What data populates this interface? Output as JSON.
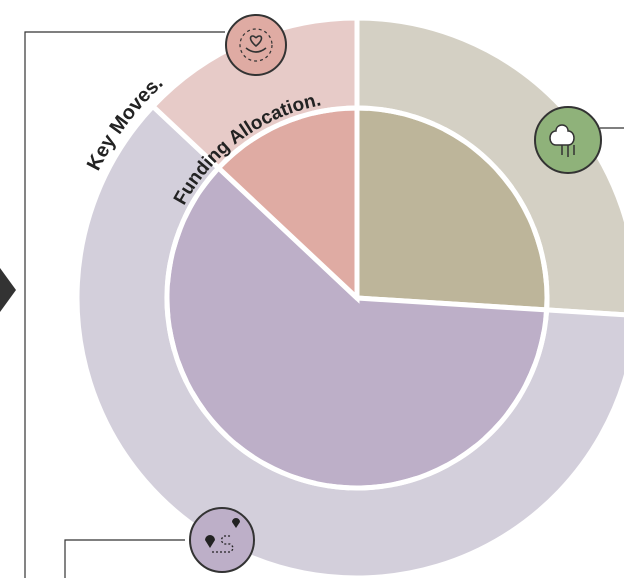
{
  "chart_data": {
    "type": "nested-pie",
    "categories": [
      null,
      null,
      null
    ],
    "series": [
      {
        "name": "Key Moves.",
        "values": [
          26,
          61,
          13
        ],
        "colors": [
          "#d4d0c4",
          "#d3cfdb",
          "#e7cbc8"
        ]
      },
      {
        "name": "Funding Allocation.",
        "values": [
          26,
          61,
          13
        ],
        "colors": [
          "#bdb59a",
          "#bdafc8",
          "#dfaba3"
        ]
      }
    ]
  }
}
